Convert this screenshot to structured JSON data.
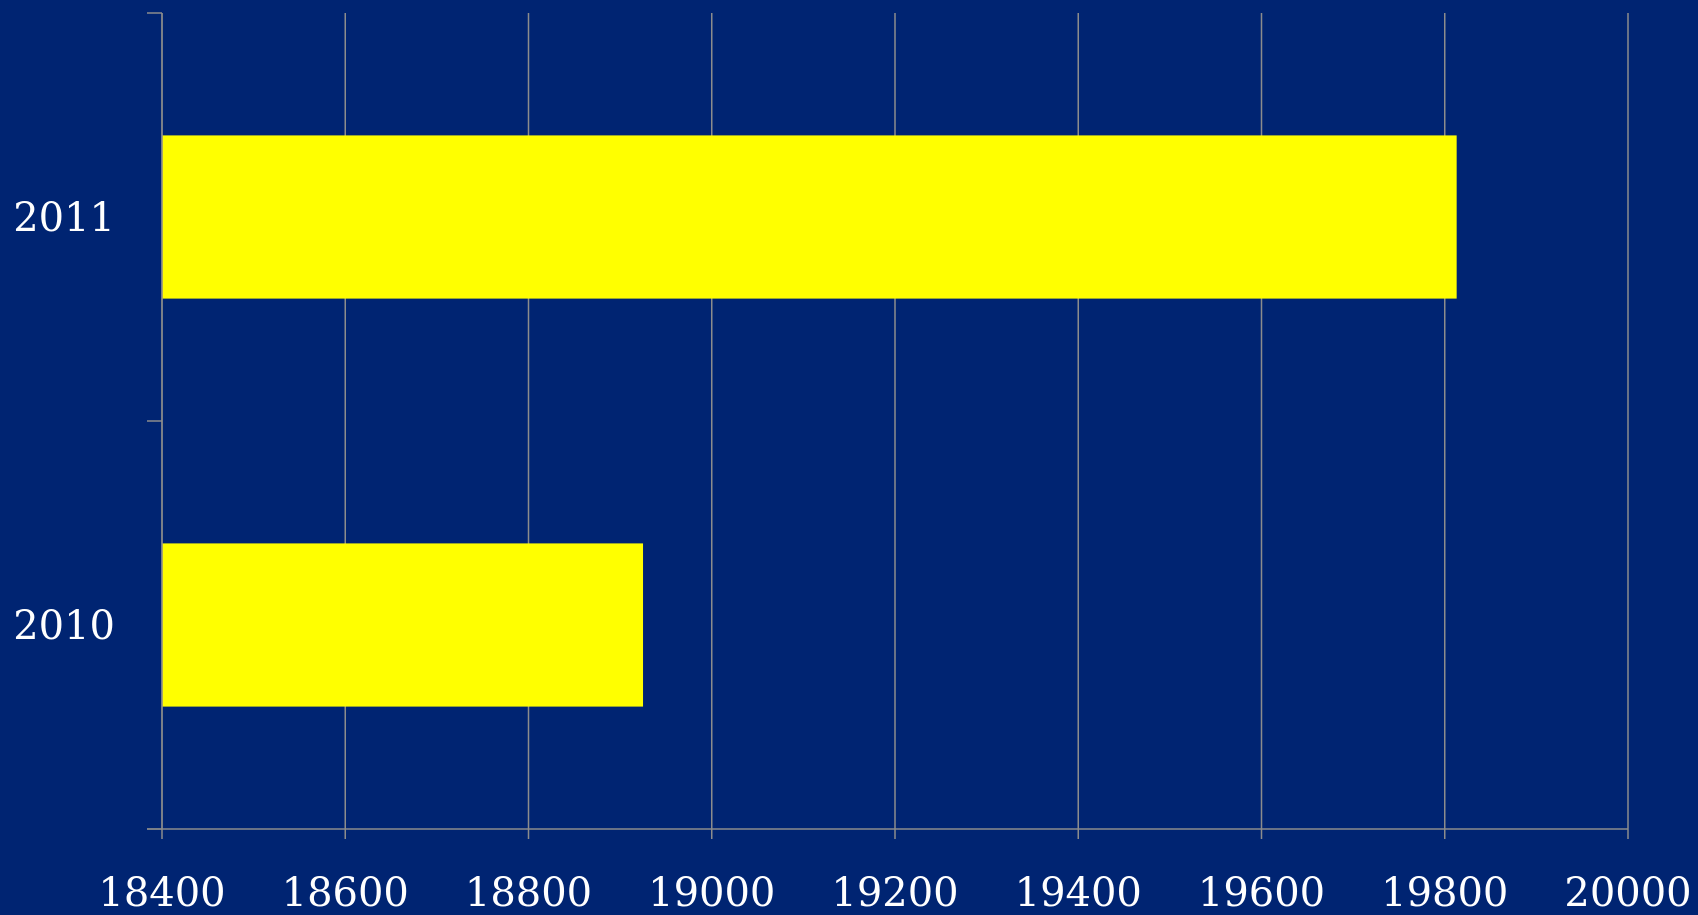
{
  "chart_data": {
    "type": "bar",
    "orientation": "horizontal",
    "categories": [
      "2010",
      "2011"
    ],
    "values": [
      18925,
      19813
    ],
    "xlim": [
      18400,
      20000
    ],
    "xticks": [
      "18400",
      "18600",
      "18800",
      "19000",
      "19200",
      "19400",
      "19600",
      "19800",
      "20000"
    ],
    "title": "",
    "xlabel": "",
    "ylabel": "",
    "grid": true,
    "legend": "none"
  },
  "colors": {
    "background": "#002472",
    "bar": "#ffff00",
    "grid": "#8c8c8c",
    "text": "#ffffff"
  }
}
